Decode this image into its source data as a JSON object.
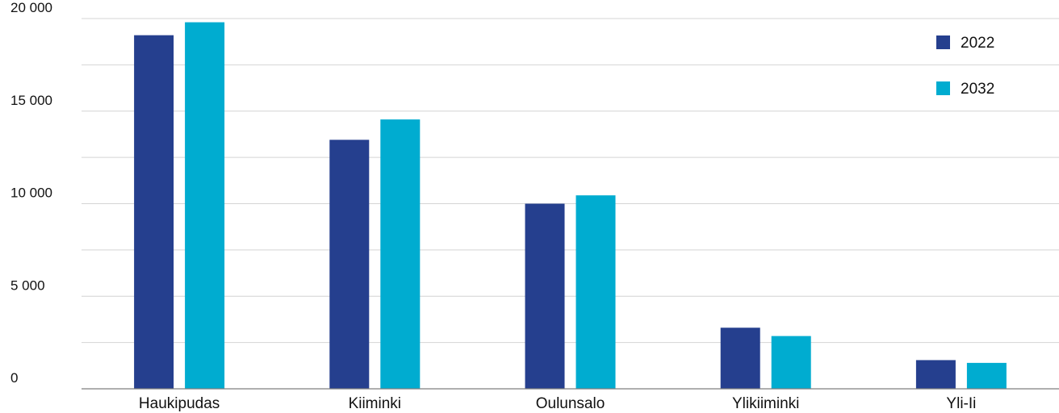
{
  "chart_data": {
    "type": "bar",
    "categories": [
      "Haukipudas",
      "Kiiminki",
      "Oulunsalo",
      "Ylikiiminki",
      "Yli-Ii"
    ],
    "series": [
      {
        "name": "2022",
        "color": "#253f8e",
        "values": [
          19100,
          13450,
          10000,
          3300,
          1550
        ]
      },
      {
        "name": "2032",
        "color": "#00acd0",
        "values": [
          19800,
          14550,
          10450,
          2850,
          1400
        ]
      }
    ],
    "ylim": [
      0,
      20000
    ],
    "yticks": [
      {
        "value": 0,
        "label": "0"
      },
      {
        "value": 5000,
        "label": "5 000"
      },
      {
        "value": 10000,
        "label": "10 000"
      },
      {
        "value": 15000,
        "label": "15 000"
      },
      {
        "value": 20000,
        "label": "20 000"
      }
    ],
    "minor_gridlines": [
      2500,
      7500,
      12500,
      17500
    ],
    "grid": true,
    "legend_position": "top-right",
    "title": "",
    "xlabel": "",
    "ylabel": ""
  }
}
